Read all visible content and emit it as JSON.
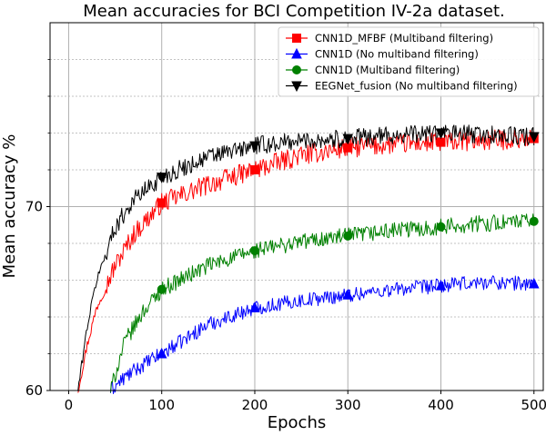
{
  "chart_data": {
    "type": "line",
    "title": "Mean accuracies for BCI Competition IV-2a dataset.",
    "xlabel": "Epochs",
    "ylabel": "Mean accuracy %",
    "xlim": [
      -20,
      510
    ],
    "ylim": [
      60,
      80
    ],
    "xticks": [
      0,
      100,
      200,
      300,
      400,
      500
    ],
    "xtick_labels": [
      "0",
      "100",
      "200",
      "300",
      "400",
      "500"
    ],
    "yticks": [
      60,
      70
    ],
    "ytick_labels": [
      "60",
      "70"
    ],
    "minor_yticks": [
      62,
      64,
      66,
      68,
      72,
      74,
      76,
      78
    ],
    "grid": true,
    "legend_position": "upper-right",
    "series": [
      {
        "name": "CNN1D_MFBF (Multiband filtering)",
        "color": "#ff0000",
        "marker": "square",
        "marker_every": 100,
        "x_start": 10,
        "x_end": 500,
        "x_anchors": [
          10,
          20,
          30,
          50,
          70,
          100,
          150,
          200,
          250,
          300,
          350,
          400,
          450,
          500
        ],
        "y_anchors": [
          60.0,
          62.5,
          64.5,
          66.8,
          68.5,
          70.2,
          71.2,
          72.0,
          72.8,
          73.2,
          73.4,
          73.5,
          73.6,
          73.7
        ],
        "noise": 0.55
      },
      {
        "name": "CNN1D (No multiband filtering)",
        "color": "#0000ff",
        "marker": "triangle-up",
        "marker_every": 100,
        "x_start": 45,
        "x_end": 500,
        "x_anchors": [
          45,
          60,
          80,
          100,
          150,
          200,
          250,
          300,
          350,
          400,
          450,
          500
        ],
        "y_anchors": [
          60.0,
          60.7,
          61.4,
          62.0,
          63.6,
          64.5,
          64.9,
          65.2,
          65.5,
          65.7,
          65.9,
          65.8
        ],
        "noise": 0.4
      },
      {
        "name": "CNN1D (Multiband filtering)",
        "color": "#008000",
        "marker": "circle",
        "marker_every": 100,
        "x_start": 45,
        "x_end": 500,
        "x_anchors": [
          45,
          60,
          80,
          100,
          150,
          200,
          250,
          300,
          350,
          400,
          450,
          500
        ],
        "y_anchors": [
          60.0,
          62.6,
          64.3,
          65.5,
          66.8,
          67.6,
          68.1,
          68.4,
          68.7,
          68.9,
          69.1,
          69.2
        ],
        "noise": 0.45
      },
      {
        "name": "EEGNet_fusion (No multiband filtering)",
        "color": "#000000",
        "marker": "triangle-down",
        "marker_every": 100,
        "x_start": 10,
        "x_end": 500,
        "x_anchors": [
          10,
          20,
          30,
          50,
          70,
          100,
          150,
          200,
          250,
          300,
          350,
          400,
          450,
          500
        ],
        "y_anchors": [
          60.0,
          63.5,
          66.0,
          68.9,
          70.4,
          71.6,
          72.7,
          73.3,
          73.6,
          73.7,
          73.9,
          74.0,
          73.9,
          73.8
        ],
        "noise": 0.5
      }
    ]
  }
}
